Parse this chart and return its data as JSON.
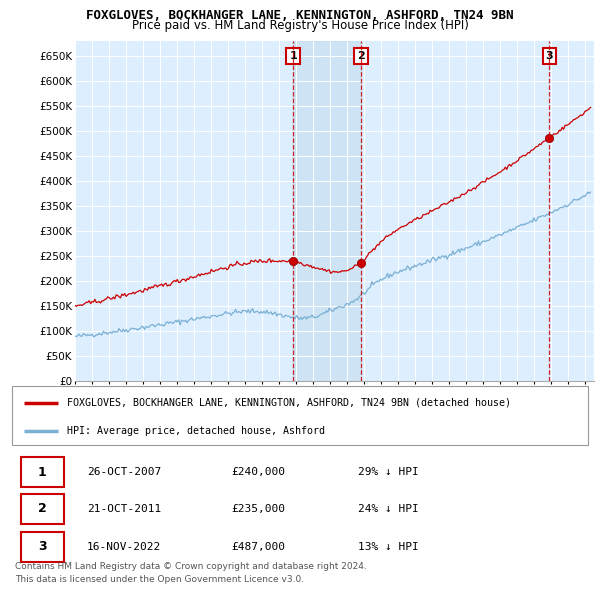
{
  "title": "FOXGLOVES, BOCKHANGER LANE, KENNINGTON, ASHFORD, TN24 9BN",
  "subtitle": "Price paid vs. HM Land Registry's House Price Index (HPI)",
  "ylabel_ticks": [
    "£0",
    "£50K",
    "£100K",
    "£150K",
    "£200K",
    "£250K",
    "£300K",
    "£350K",
    "£400K",
    "£450K",
    "£500K",
    "£550K",
    "£600K",
    "£650K"
  ],
  "ytick_values": [
    0,
    50000,
    100000,
    150000,
    200000,
    250000,
    300000,
    350000,
    400000,
    450000,
    500000,
    550000,
    600000,
    650000
  ],
  "ylim": [
    0,
    680000
  ],
  "xlim_start": 1995.0,
  "xlim_end": 2025.5,
  "sale_dates": [
    2007.82,
    2011.8,
    2022.88
  ],
  "sale_prices": [
    240000,
    235000,
    487000
  ],
  "sale_labels": [
    "1",
    "2",
    "3"
  ],
  "hpi_color": "#7ab0d4",
  "sale_color": "#cc0000",
  "bg_color": "#ddeeff",
  "shade_color": "#c8dff0",
  "legend_line1": "FOXGLOVES, BOCKHANGER LANE, KENNINGTON, ASHFORD, TN24 9BN (detached house)",
  "legend_line2": "HPI: Average price, detached house, Ashford",
  "table_rows": [
    [
      "1",
      "26-OCT-2007",
      "£240,000",
      "29% ↓ HPI"
    ],
    [
      "2",
      "21-OCT-2011",
      "£235,000",
      "24% ↓ HPI"
    ],
    [
      "3",
      "16-NOV-2022",
      "£487,000",
      "13% ↓ HPI"
    ]
  ],
  "footer1": "Contains HM Land Registry data © Crown copyright and database right 2024.",
  "footer2": "This data is licensed under the Open Government Licence v3.0."
}
